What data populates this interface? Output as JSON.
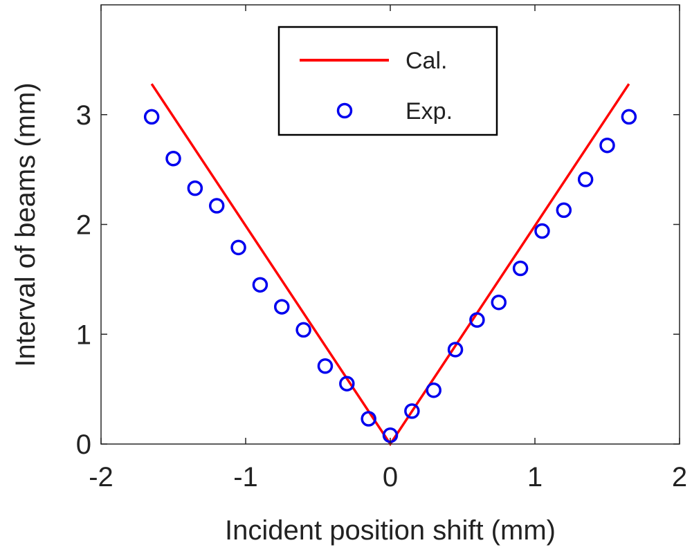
{
  "chart_data": {
    "type": "line+scatter",
    "xlabel": "Incident position shift (mm)",
    "ylabel": "Interval of beams (mm)",
    "xlim": [
      -2,
      2
    ],
    "ylim": [
      0,
      4
    ],
    "xticks": [
      -2,
      -1,
      0,
      1,
      2
    ],
    "yticks": [
      0,
      1,
      2,
      3
    ],
    "grid": false,
    "legend_position": "top-center",
    "colors": {
      "calc": "#ff0000",
      "exp": "#0000ee"
    },
    "series": [
      {
        "name": "Cal.",
        "kind": "line",
        "x": [
          -1.65,
          0,
          1.65
        ],
        "y": [
          3.28,
          0,
          3.28
        ]
      },
      {
        "name": "Exp.",
        "kind": "scatter",
        "marker": "open-circle",
        "x": [
          -1.65,
          -1.5,
          -1.35,
          -1.2,
          -1.05,
          -0.9,
          -0.75,
          -0.6,
          -0.45,
          -0.3,
          -0.15,
          0,
          0.15,
          0.3,
          0.45,
          0.6,
          0.75,
          0.9,
          1.05,
          1.2,
          1.35,
          1.5,
          1.65
        ],
        "y": [
          2.98,
          2.6,
          2.33,
          2.17,
          1.79,
          1.45,
          1.25,
          1.04,
          0.71,
          0.55,
          0.23,
          0.08,
          0.3,
          0.49,
          0.86,
          1.13,
          1.29,
          1.6,
          1.94,
          2.13,
          2.41,
          2.72,
          2.98
        ]
      }
    ]
  }
}
